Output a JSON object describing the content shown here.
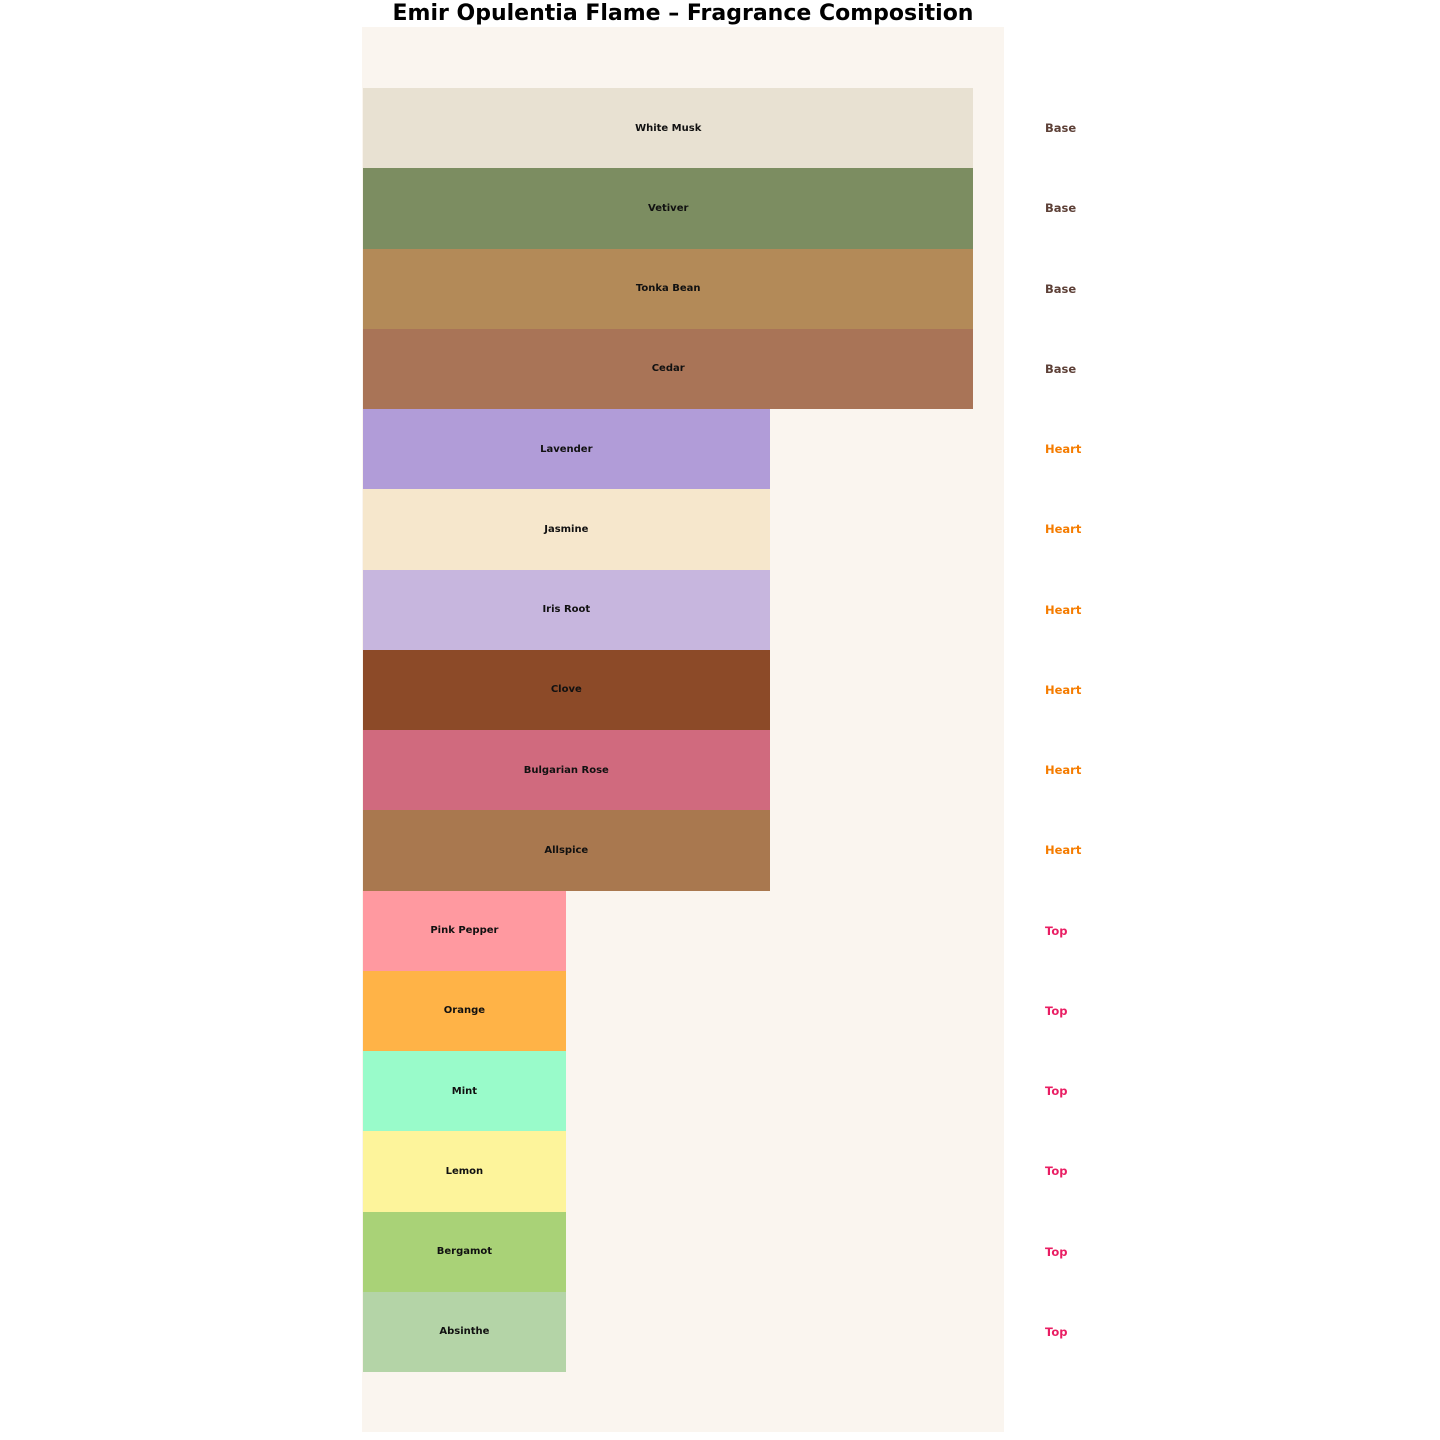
{
  "title": "Emir Opulentia Flame – Fragrance Composition",
  "chart_data": {
    "type": "bar",
    "orientation": "horizontal",
    "title": "Emir Opulentia Flame – Fragrance Composition",
    "xlabel": "",
    "ylabel": "",
    "xlim": [
      0,
      3.15
    ],
    "grid": false,
    "axes_visible": false,
    "plot_background": "#faf5ef",
    "page_background": "#ffffff",
    "legend_position": "right-annotations",
    "tier_values": {
      "Base": 3,
      "Heart": 2,
      "Top": 1
    },
    "tier_label_colors": {
      "Base": "#5d4037",
      "Heart": "#f57c00",
      "Top": "#e91e63"
    },
    "bars": [
      {
        "label": "White Musk",
        "tier": "Base",
        "value": 3,
        "color": "#e8e1d2"
      },
      {
        "label": "Vetiver",
        "tier": "Base",
        "value": 3,
        "color": "#7c8d61"
      },
      {
        "label": "Tonka Bean",
        "tier": "Base",
        "value": 3,
        "color": "#b38a58"
      },
      {
        "label": "Cedar",
        "tier": "Base",
        "value": 3,
        "color": "#a97457"
      },
      {
        "label": "Lavender",
        "tier": "Heart",
        "value": 2,
        "color": "#b19cd8"
      },
      {
        "label": "Jasmine",
        "tier": "Heart",
        "value": 2,
        "color": "#f6e7cc"
      },
      {
        "label": "Iris Root",
        "tier": "Heart",
        "value": 2,
        "color": "#c7b6de"
      },
      {
        "label": "Clove",
        "tier": "Heart",
        "value": 2,
        "color": "#8c4a28"
      },
      {
        "label": "Bulgarian Rose",
        "tier": "Heart",
        "value": 2,
        "color": "#d06a7e"
      },
      {
        "label": "Allspice",
        "tier": "Heart",
        "value": 2,
        "color": "#a9784f"
      },
      {
        "label": "Pink Pepper",
        "tier": "Top",
        "value": 1,
        "color": "#ff99a0"
      },
      {
        "label": "Orange",
        "tier": "Top",
        "value": 1,
        "color": "#ffb347"
      },
      {
        "label": "Mint",
        "tier": "Top",
        "value": 1,
        "color": "#99fbca"
      },
      {
        "label": "Lemon",
        "tier": "Top",
        "value": 1,
        "color": "#fdf49b"
      },
      {
        "label": "Bergamot",
        "tier": "Top",
        "value": 1,
        "color": "#a9d277"
      },
      {
        "label": "Absinthe",
        "tier": "Top",
        "value": 1,
        "color": "#b4d4a7"
      }
    ],
    "layout": {
      "bars_top_offset": 61,
      "row_height": 80.25,
      "bar_fill_ratio": 1.0
    }
  }
}
